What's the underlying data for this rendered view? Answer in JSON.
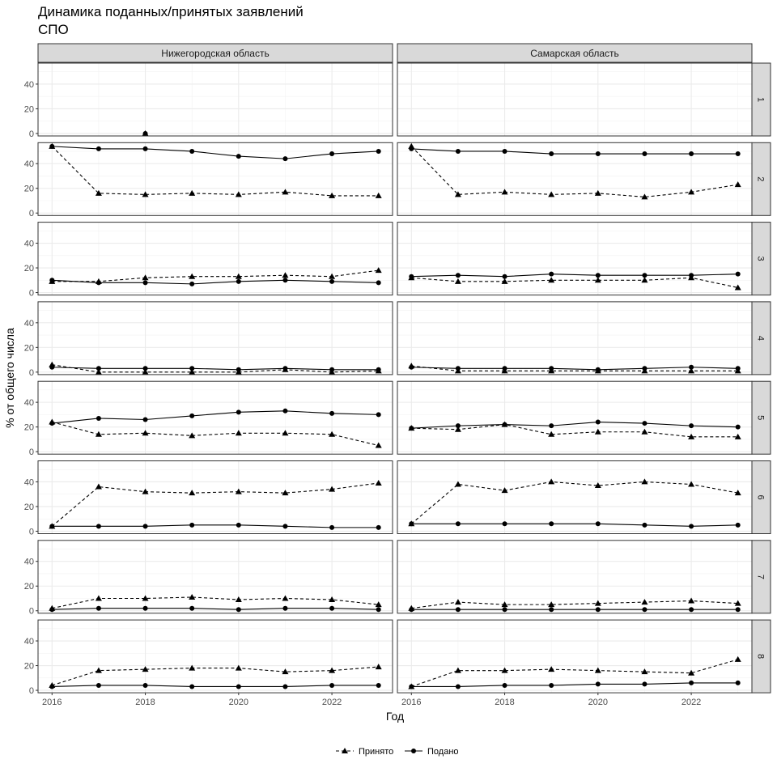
{
  "title_line1": "Динамика поданных/принятых заявлений",
  "title_line2": "СПО",
  "chart_data": {
    "type": "line",
    "facet_columns": [
      "Нижегородская область",
      "Самарская область"
    ],
    "facet_rows": [
      "1",
      "2",
      "3",
      "4",
      "5",
      "6",
      "7",
      "8"
    ],
    "xlabel": "Год",
    "ylabel": "% от общего числа",
    "x_ticks": [
      2016,
      2018,
      2020,
      2022
    ],
    "y_ticks": [
      0,
      20,
      40
    ],
    "xlim": [
      2015.7,
      2023.3
    ],
    "ylim": [
      -2,
      57
    ],
    "legend": {
      "placement": "bottom",
      "entries": [
        {
          "name": "Принято",
          "marker": "triangle",
          "line": "dashed"
        },
        {
          "name": "Подано",
          "marker": "circle",
          "line": "solid"
        }
      ]
    },
    "panels": [
      {
        "row": "1",
        "col": "Нижегородская область",
        "series": [
          {
            "name": "Принято",
            "x": [
              2018
            ],
            "values": [
              0
            ]
          },
          {
            "name": "Подано",
            "x": [
              2018
            ],
            "values": [
              0
            ]
          }
        ]
      },
      {
        "row": "1",
        "col": "Самарская область",
        "series": [
          {
            "name": "Принято",
            "x": [],
            "values": []
          },
          {
            "name": "Подано",
            "x": [],
            "values": []
          }
        ]
      },
      {
        "row": "2",
        "col": "Нижегородская область",
        "series": [
          {
            "name": "Принято",
            "x": [
              2016,
              2017,
              2018,
              2019,
              2020,
              2021,
              2022,
              2023
            ],
            "values": [
              54,
              16,
              15,
              16,
              15,
              17,
              14,
              14
            ]
          },
          {
            "name": "Подано",
            "x": [
              2016,
              2017,
              2018,
              2019,
              2020,
              2021,
              2022,
              2023
            ],
            "values": [
              54,
              52,
              52,
              50,
              46,
              44,
              48,
              50
            ]
          }
        ]
      },
      {
        "row": "2",
        "col": "Самарская область",
        "series": [
          {
            "name": "Принято",
            "x": [
              2016,
              2017,
              2018,
              2019,
              2020,
              2021,
              2022,
              2023
            ],
            "values": [
              54,
              15,
              17,
              15,
              16,
              13,
              17,
              23
            ]
          },
          {
            "name": "Подано",
            "x": [
              2016,
              2017,
              2018,
              2019,
              2020,
              2021,
              2022,
              2023
            ],
            "values": [
              52,
              50,
              50,
              48,
              48,
              48,
              48,
              48
            ]
          }
        ]
      },
      {
        "row": "3",
        "col": "Нижегородская область",
        "series": [
          {
            "name": "Принято",
            "x": [
              2016,
              2017,
              2018,
              2019,
              2020,
              2021,
              2022,
              2023
            ],
            "values": [
              9,
              9,
              12,
              13,
              13,
              14,
              13,
              18
            ]
          },
          {
            "name": "Подано",
            "x": [
              2016,
              2017,
              2018,
              2019,
              2020,
              2021,
              2022,
              2023
            ],
            "values": [
              10,
              8,
              8,
              7,
              9,
              10,
              9,
              8
            ]
          }
        ]
      },
      {
        "row": "3",
        "col": "Самарская область",
        "series": [
          {
            "name": "Принято",
            "x": [
              2016,
              2017,
              2018,
              2019,
              2020,
              2021,
              2022,
              2023
            ],
            "values": [
              12,
              9,
              9,
              10,
              10,
              10,
              12,
              4
            ]
          },
          {
            "name": "Подано",
            "x": [
              2016,
              2017,
              2018,
              2019,
              2020,
              2021,
              2022,
              2023
            ],
            "values": [
              13,
              14,
              13,
              15,
              14,
              14,
              14,
              15
            ]
          }
        ]
      },
      {
        "row": "4",
        "col": "Нижегородская область",
        "series": [
          {
            "name": "Принято",
            "x": [
              2016,
              2017,
              2018,
              2019,
              2020,
              2021,
              2022,
              2023
            ],
            "values": [
              6,
              0,
              0,
              0,
              0,
              2,
              0,
              1
            ]
          },
          {
            "name": "Подано",
            "x": [
              2016,
              2017,
              2018,
              2019,
              2020,
              2021,
              2022,
              2023
            ],
            "values": [
              4,
              3,
              3,
              3,
              2,
              3,
              2,
              2
            ]
          }
        ]
      },
      {
        "row": "4",
        "col": "Самарская область",
        "series": [
          {
            "name": "Принято",
            "x": [
              2016,
              2017,
              2018,
              2019,
              2020,
              2021,
              2022,
              2023
            ],
            "values": [
              5,
              1,
              1,
              1,
              1,
              1,
              1,
              1
            ]
          },
          {
            "name": "Подано",
            "x": [
              2016,
              2017,
              2018,
              2019,
              2020,
              2021,
              2022,
              2023
            ],
            "values": [
              4,
              3,
              3,
              3,
              2,
              3,
              4,
              3
            ]
          }
        ]
      },
      {
        "row": "5",
        "col": "Нижегородская область",
        "series": [
          {
            "name": "Принято",
            "x": [
              2016,
              2017,
              2018,
              2019,
              2020,
              2021,
              2022,
              2023
            ],
            "values": [
              24,
              14,
              15,
              13,
              15,
              15,
              14,
              5
            ]
          },
          {
            "name": "Подано",
            "x": [
              2016,
              2017,
              2018,
              2019,
              2020,
              2021,
              2022,
              2023
            ],
            "values": [
              23,
              27,
              26,
              29,
              32,
              33,
              31,
              30
            ]
          }
        ]
      },
      {
        "row": "5",
        "col": "Самарская область",
        "series": [
          {
            "name": "Принято",
            "x": [
              2016,
              2017,
              2018,
              2019,
              2020,
              2021,
              2022,
              2023
            ],
            "values": [
              19,
              18,
              22,
              14,
              16,
              16,
              12,
              12
            ]
          },
          {
            "name": "Подано",
            "x": [
              2016,
              2017,
              2018,
              2019,
              2020,
              2021,
              2022,
              2023
            ],
            "values": [
              19,
              21,
              22,
              21,
              24,
              23,
              21,
              20
            ]
          }
        ]
      },
      {
        "row": "6",
        "col": "Нижегородская область",
        "series": [
          {
            "name": "Принято",
            "x": [
              2016,
              2017,
              2018,
              2019,
              2020,
              2021,
              2022,
              2023
            ],
            "values": [
              4,
              36,
              32,
              31,
              32,
              31,
              34,
              39
            ]
          },
          {
            "name": "Подано",
            "x": [
              2016,
              2017,
              2018,
              2019,
              2020,
              2021,
              2022,
              2023
            ],
            "values": [
              4,
              4,
              4,
              5,
              5,
              4,
              3,
              3
            ]
          }
        ]
      },
      {
        "row": "6",
        "col": "Самарская область",
        "series": [
          {
            "name": "Принято",
            "x": [
              2016,
              2017,
              2018,
              2019,
              2020,
              2021,
              2022,
              2023
            ],
            "values": [
              6,
              38,
              33,
              40,
              37,
              40,
              38,
              31
            ]
          },
          {
            "name": "Подано",
            "x": [
              2016,
              2017,
              2018,
              2019,
              2020,
              2021,
              2022,
              2023
            ],
            "values": [
              6,
              6,
              6,
              6,
              6,
              5,
              4,
              5
            ]
          }
        ]
      },
      {
        "row": "7",
        "col": "Нижегородская область",
        "series": [
          {
            "name": "Принято",
            "x": [
              2016,
              2017,
              2018,
              2019,
              2020,
              2021,
              2022,
              2023
            ],
            "values": [
              2,
              10,
              10,
              11,
              9,
              10,
              9,
              5
            ]
          },
          {
            "name": "Подано",
            "x": [
              2016,
              2017,
              2018,
              2019,
              2020,
              2021,
              2022,
              2023
            ],
            "values": [
              1,
              2,
              2,
              2,
              1,
              2,
              2,
              1
            ]
          }
        ]
      },
      {
        "row": "7",
        "col": "Самарская область",
        "series": [
          {
            "name": "Принято",
            "x": [
              2016,
              2017,
              2018,
              2019,
              2020,
              2021,
              2022,
              2023
            ],
            "values": [
              2,
              7,
              5,
              5,
              6,
              7,
              8,
              6
            ]
          },
          {
            "name": "Подано",
            "x": [
              2016,
              2017,
              2018,
              2019,
              2020,
              2021,
              2022,
              2023
            ],
            "values": [
              1,
              1,
              1,
              1,
              1,
              1,
              1,
              1
            ]
          }
        ]
      },
      {
        "row": "8",
        "col": "Нижегородская область",
        "series": [
          {
            "name": "Принято",
            "x": [
              2016,
              2017,
              2018,
              2019,
              2020,
              2021,
              2022,
              2023
            ],
            "values": [
              4,
              16,
              17,
              18,
              18,
              15,
              16,
              19
            ]
          },
          {
            "name": "Подано",
            "x": [
              2016,
              2017,
              2018,
              2019,
              2020,
              2021,
              2022,
              2023
            ],
            "values": [
              3,
              4,
              4,
              3,
              3,
              3,
              4,
              4
            ]
          }
        ]
      },
      {
        "row": "8",
        "col": "Самарская область",
        "series": [
          {
            "name": "Принято",
            "x": [
              2016,
              2017,
              2018,
              2019,
              2020,
              2021,
              2022,
              2023
            ],
            "values": [
              3,
              16,
              16,
              17,
              16,
              15,
              14,
              25
            ]
          },
          {
            "name": "Подано",
            "x": [
              2016,
              2017,
              2018,
              2019,
              2020,
              2021,
              2022,
              2023
            ],
            "values": [
              3,
              3,
              4,
              4,
              5,
              5,
              6,
              6
            ]
          }
        ]
      }
    ]
  }
}
